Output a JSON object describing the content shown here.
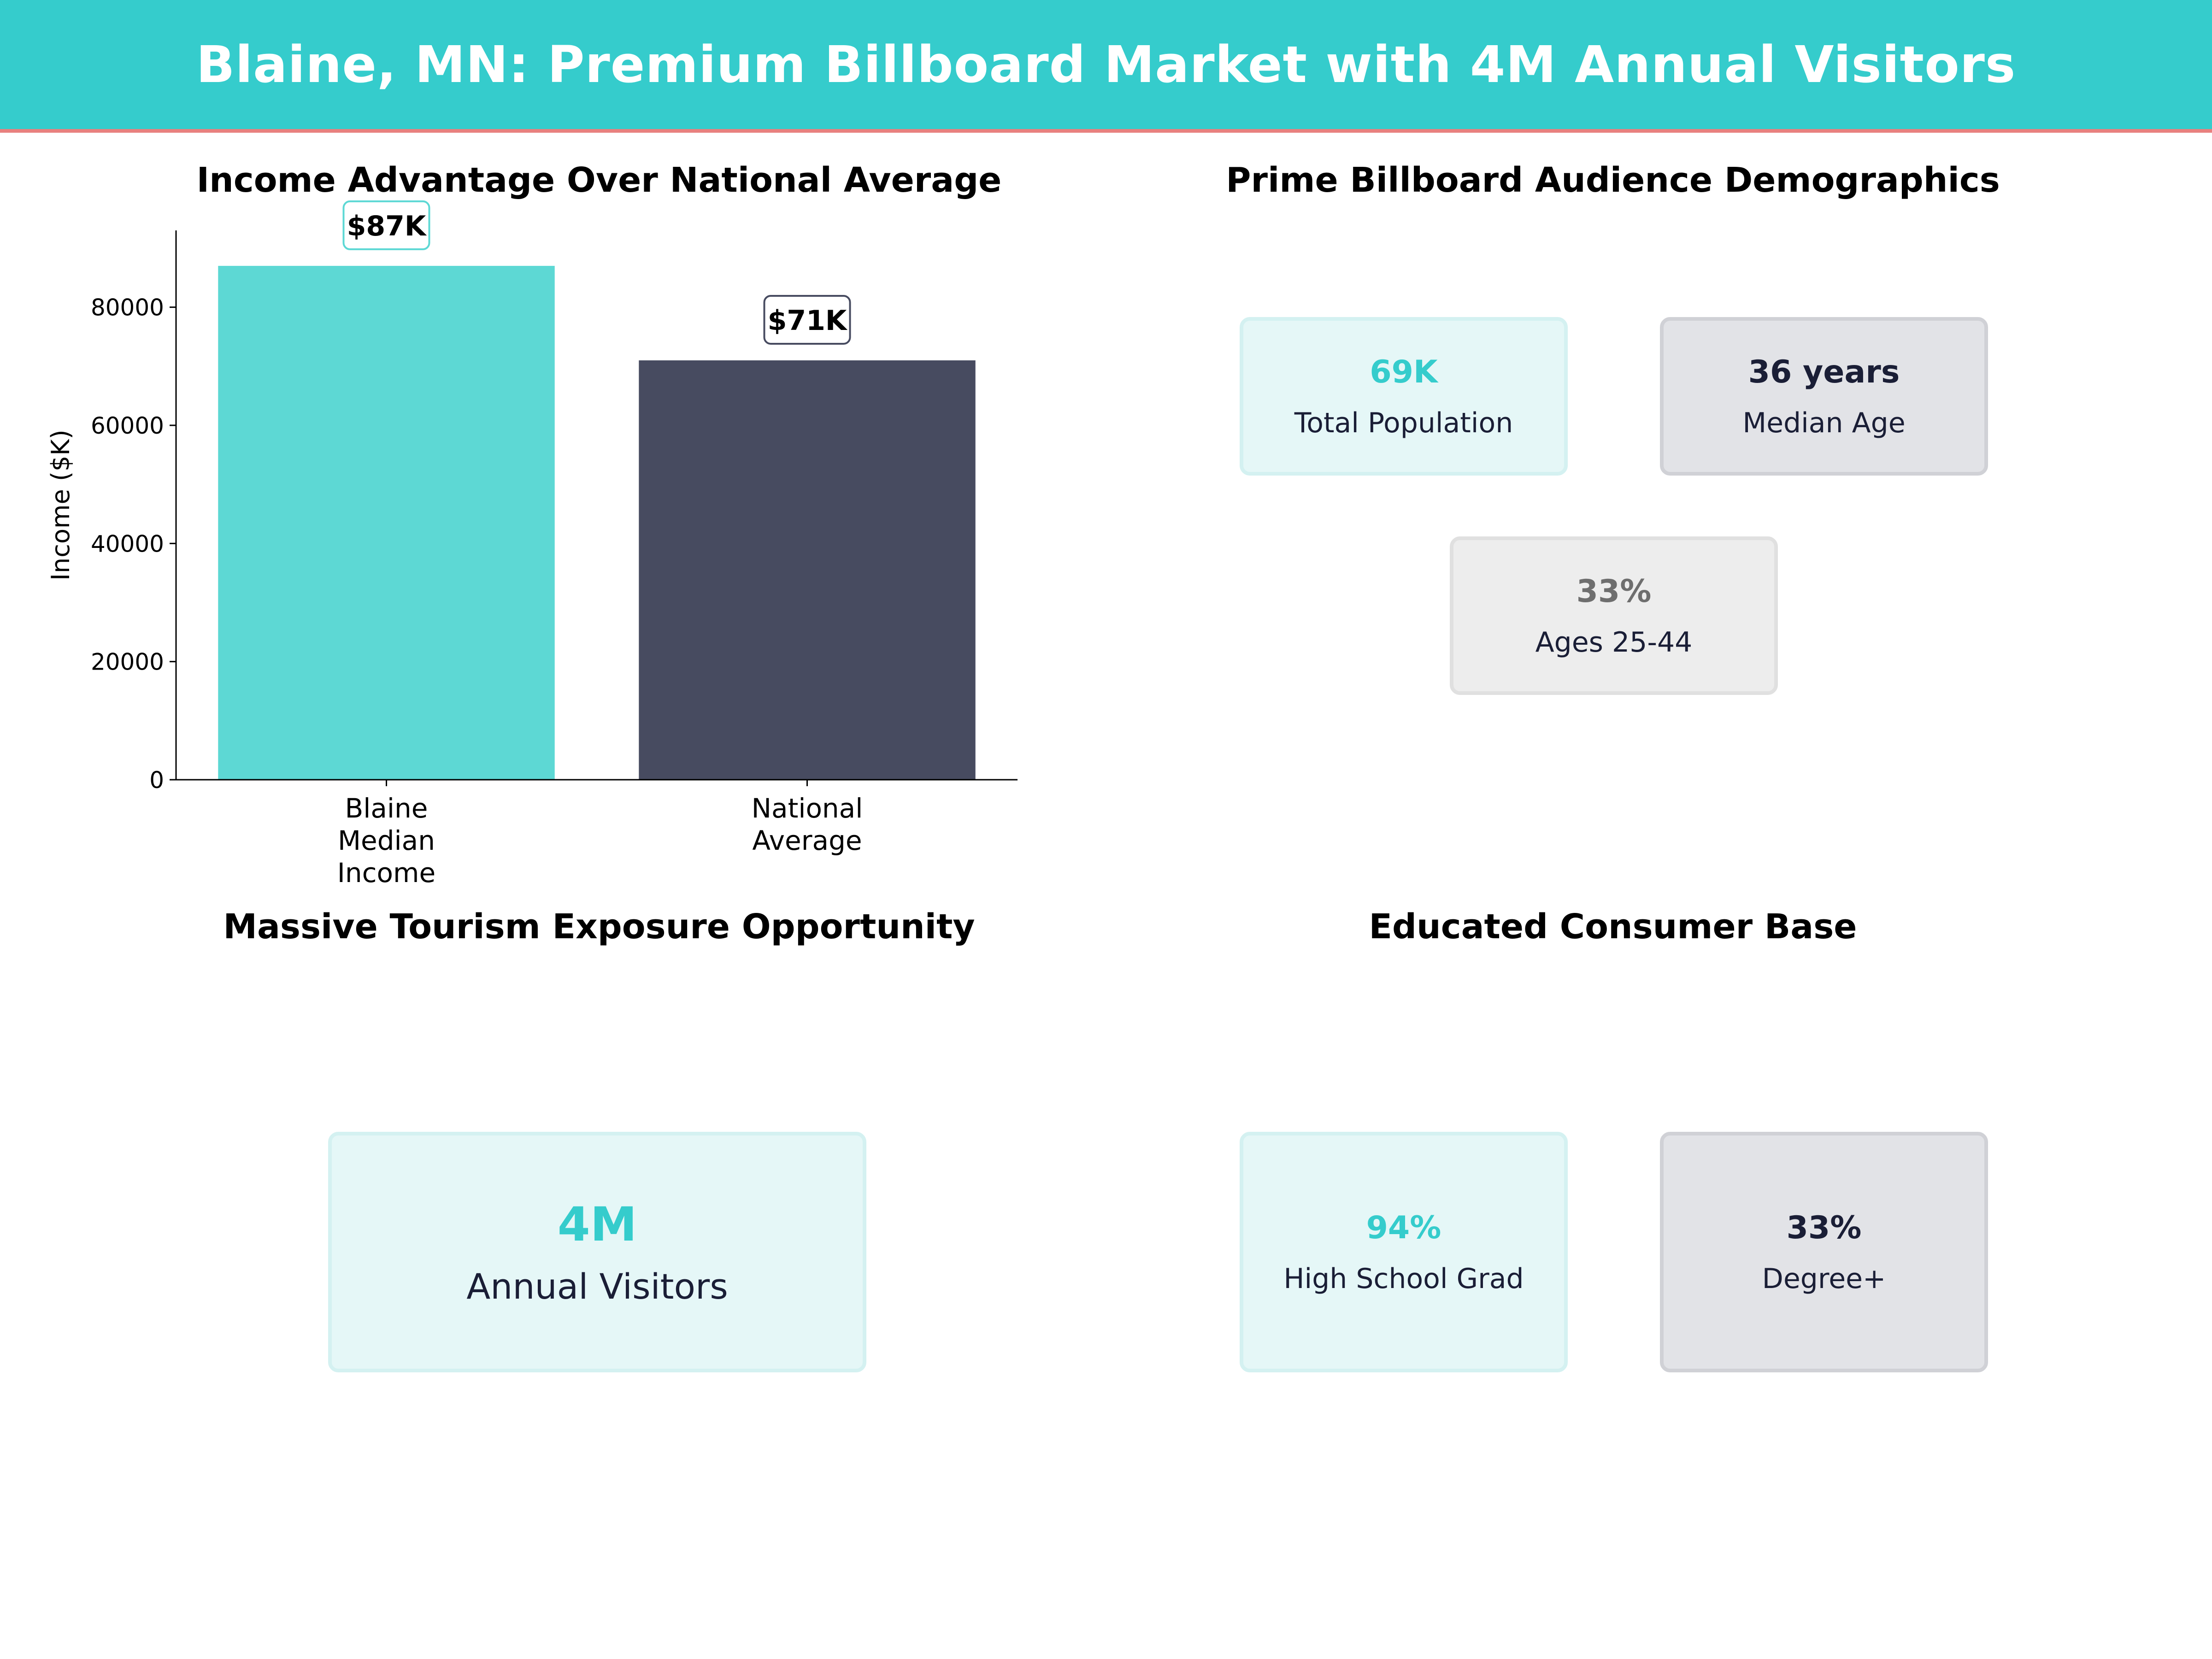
{
  "header": {
    "title": "Blaine, MN: Premium Billboard Market with 4M Annual Visitors"
  },
  "colors": {
    "banner": "#35cccc",
    "banner_accent": "#e8807e",
    "teal": "#35cccc",
    "navy": "#1a1e36",
    "gray": "#6e6e6e"
  },
  "panels": {
    "income": {
      "title": "Income Advantage Over National Average"
    },
    "demographics": {
      "title": "Prime Billboard Audience Demographics"
    },
    "tourism": {
      "title": "Massive Tourism Exposure Opportunity"
    },
    "education": {
      "title": "Educated Consumer Base"
    }
  },
  "chart_data": {
    "type": "bar",
    "title": "Income Advantage Over National Average",
    "xlabel": "",
    "ylabel": "Income ($K)",
    "categories": [
      "Blaine Median Income",
      "National Average"
    ],
    "category_lines": [
      [
        "Blaine",
        "Median",
        "Income"
      ],
      [
        "National",
        "Average"
      ]
    ],
    "values": [
      87000,
      71000
    ],
    "data_labels": [
      "$87K",
      "$71K"
    ],
    "bar_colors": [
      "#5dd8d4",
      "#474b60"
    ],
    "ylim": [
      0,
      93000
    ],
    "yticks": [
      0,
      20000,
      40000,
      60000,
      80000
    ],
    "ytick_labels": [
      "0",
      "20000",
      "40000",
      "60000",
      "80000"
    ],
    "grid": false
  },
  "demographics": {
    "cards": [
      {
        "value": "69K",
        "label": "Total Population",
        "style": "teal"
      },
      {
        "value": "36  years",
        "label": "Median Age",
        "style": "navy"
      },
      {
        "value": "33%",
        "label": "Ages 25-44",
        "style": "gray"
      }
    ]
  },
  "tourism": {
    "card": {
      "value": "4M",
      "label": "Annual Visitors",
      "style": "teal"
    }
  },
  "education": {
    "cards": [
      {
        "value": "94%",
        "label": "High School Grad",
        "style": "teal"
      },
      {
        "value": "33%",
        "label": "Degree+",
        "style": "navy"
      }
    ]
  }
}
